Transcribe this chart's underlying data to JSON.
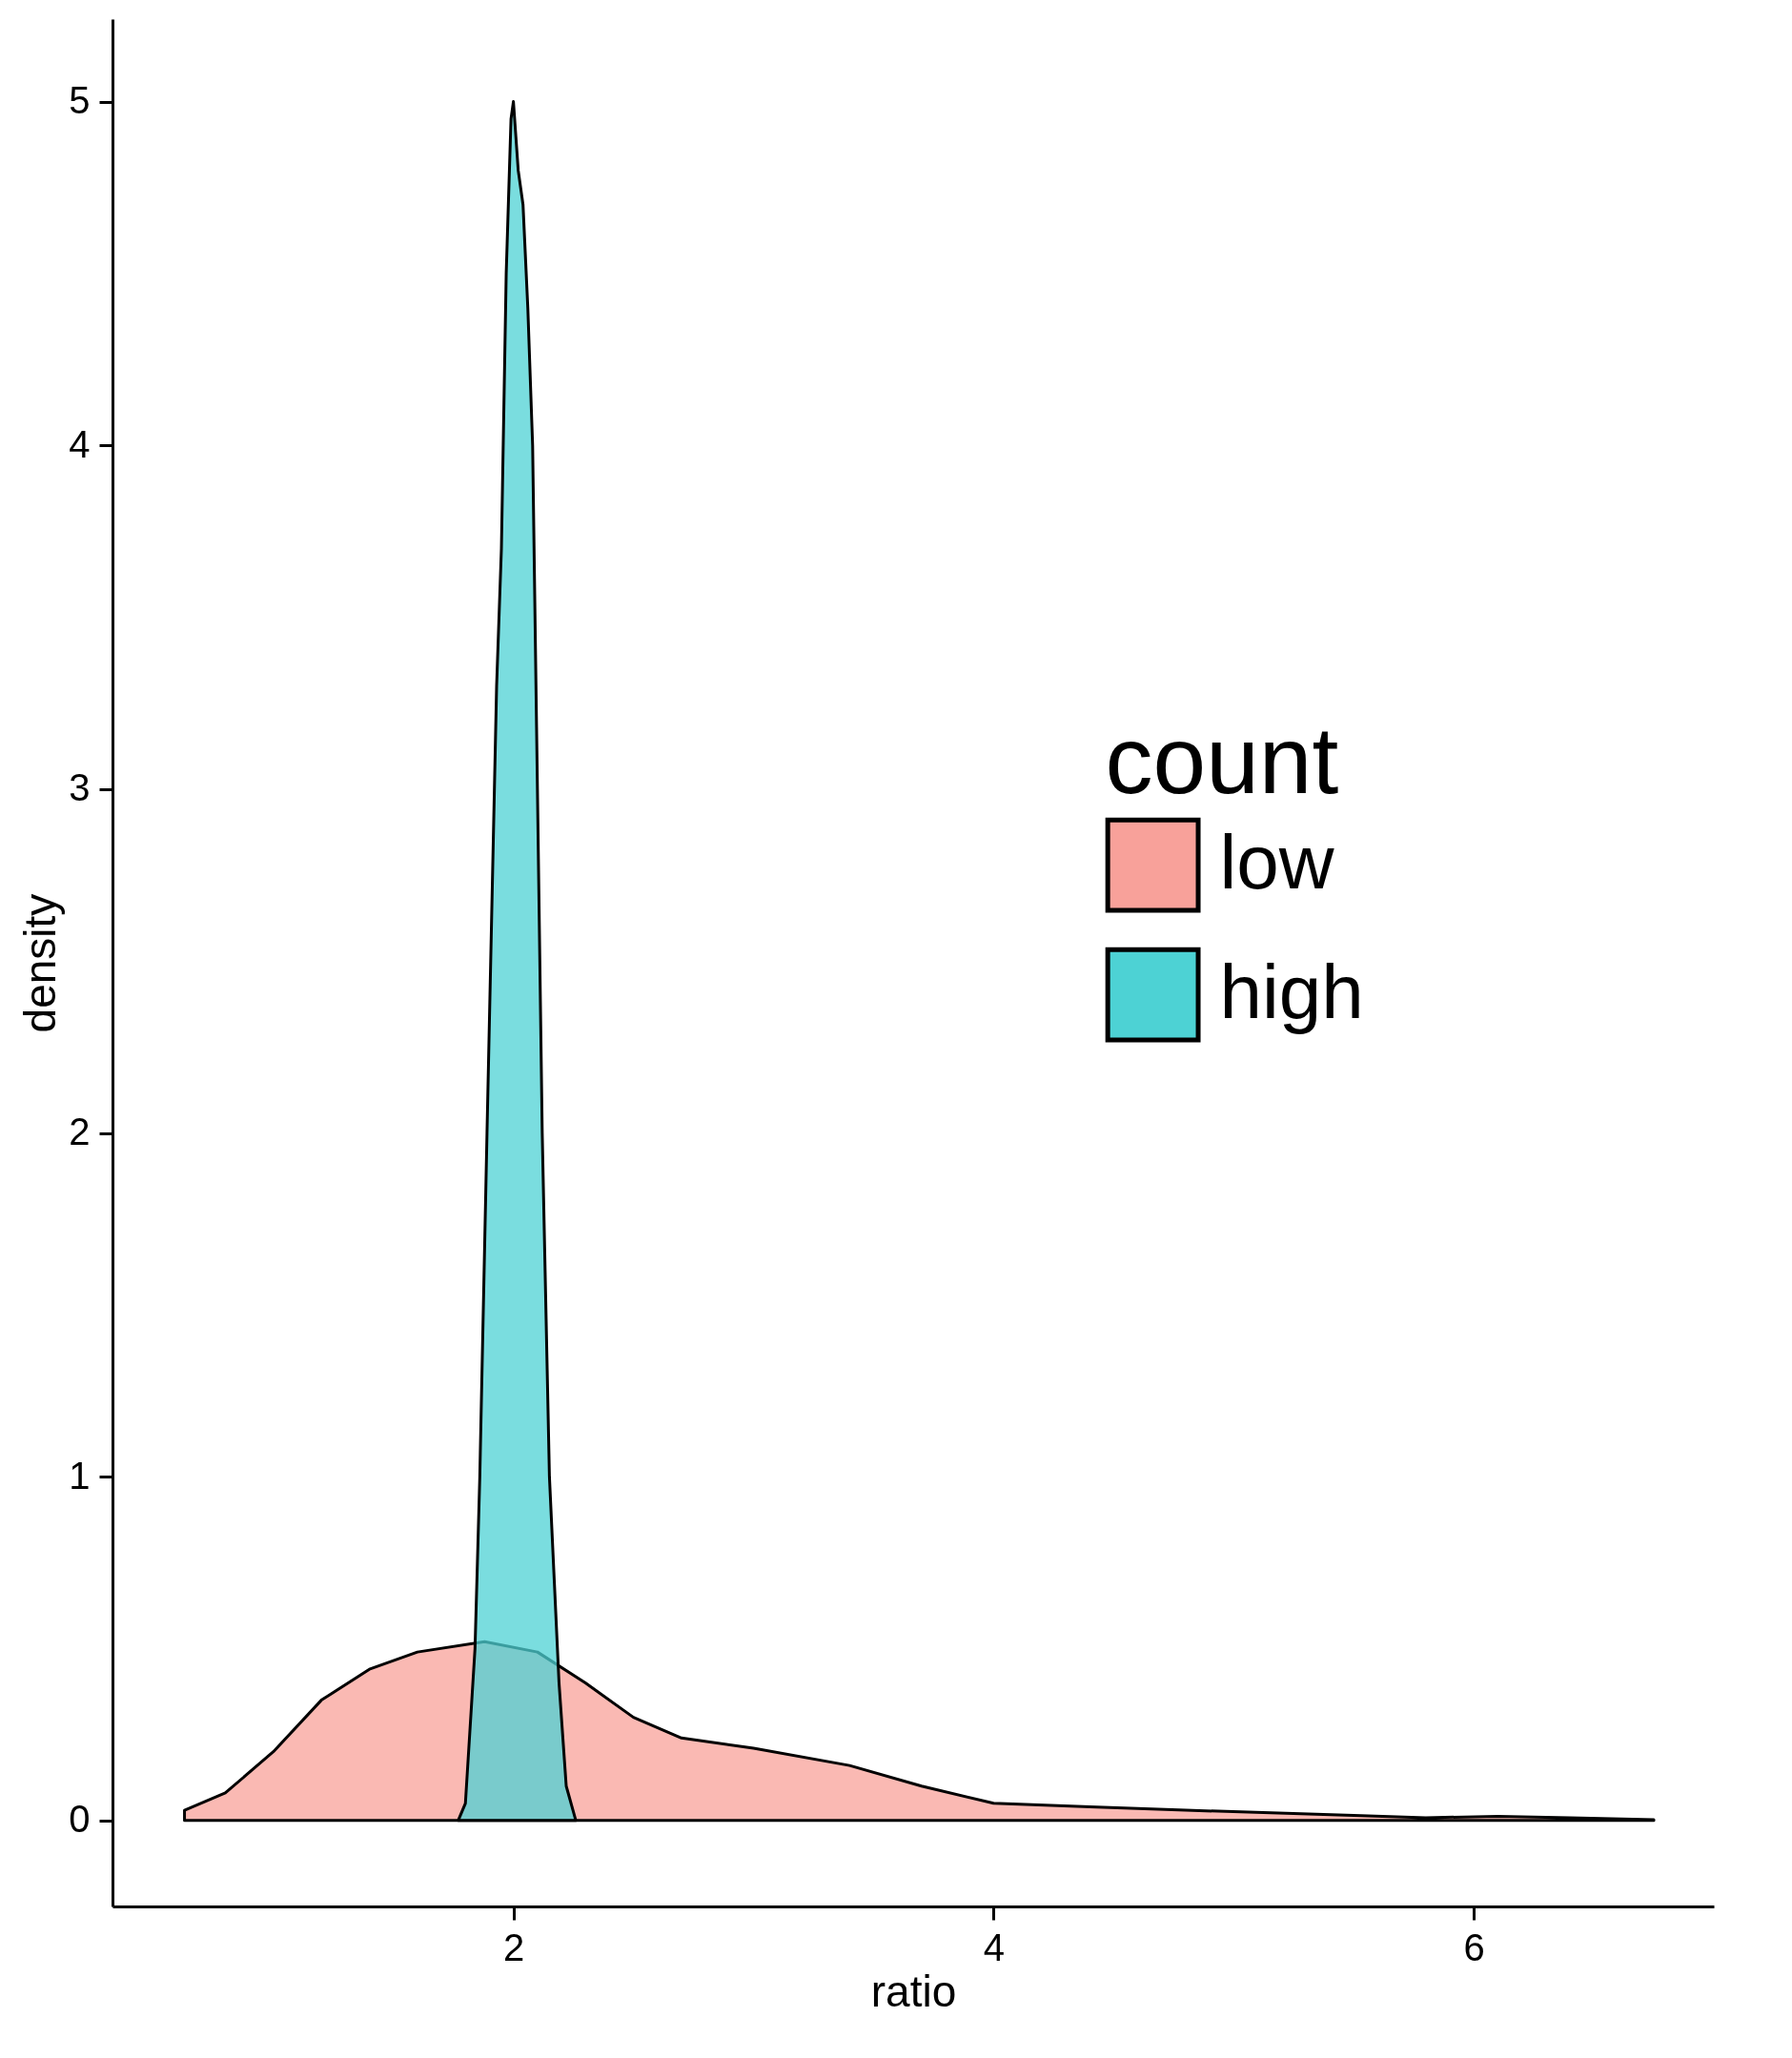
{
  "chart_data": {
    "type": "area",
    "xlabel": "ratio",
    "ylabel": "density",
    "legend_title": "count",
    "legend": "right",
    "grid": false,
    "xlim": [
      0.33,
      7.0
    ],
    "xticks": [
      2,
      4,
      6
    ],
    "ylim": [
      -0.25,
      5.24
    ],
    "yticks": [
      0,
      1,
      2,
      3,
      4,
      5
    ],
    "series": [
      {
        "name": "low",
        "color": "#f8a19a",
        "x": [
          0.63,
          0.8,
          1.0,
          1.2,
          1.4,
          1.6,
          1.88,
          2.1,
          2.3,
          2.5,
          2.7,
          3.0,
          3.4,
          3.7,
          4.0,
          4.4,
          4.8,
          5.5,
          5.8,
          6.1,
          6.4,
          6.75
        ],
        "values": [
          0.03,
          0.08,
          0.2,
          0.35,
          0.44,
          0.49,
          0.52,
          0.49,
          0.4,
          0.3,
          0.24,
          0.21,
          0.16,
          0.1,
          0.05,
          0.04,
          0.03,
          0.015,
          0.008,
          0.012,
          0.008,
          0.002
        ]
      },
      {
        "name": "high",
        "color": "#4dd2d4",
        "x": [
          1.77,
          1.8,
          1.84,
          1.86,
          1.89,
          1.93,
          1.95,
          1.97,
          1.99,
          2.0,
          2.01,
          2.02,
          2.04,
          2.06,
          2.08,
          2.1,
          2.12,
          2.15,
          2.17,
          2.19,
          2.22,
          2.26
        ],
        "values": [
          0,
          0.05,
          0.5,
          1.0,
          2.0,
          3.3,
          3.7,
          4.5,
          4.95,
          5.0,
          4.9,
          4.8,
          4.7,
          4.4,
          4.0,
          3.0,
          2.0,
          1.0,
          0.7,
          0.4,
          0.1,
          0
        ]
      }
    ]
  }
}
